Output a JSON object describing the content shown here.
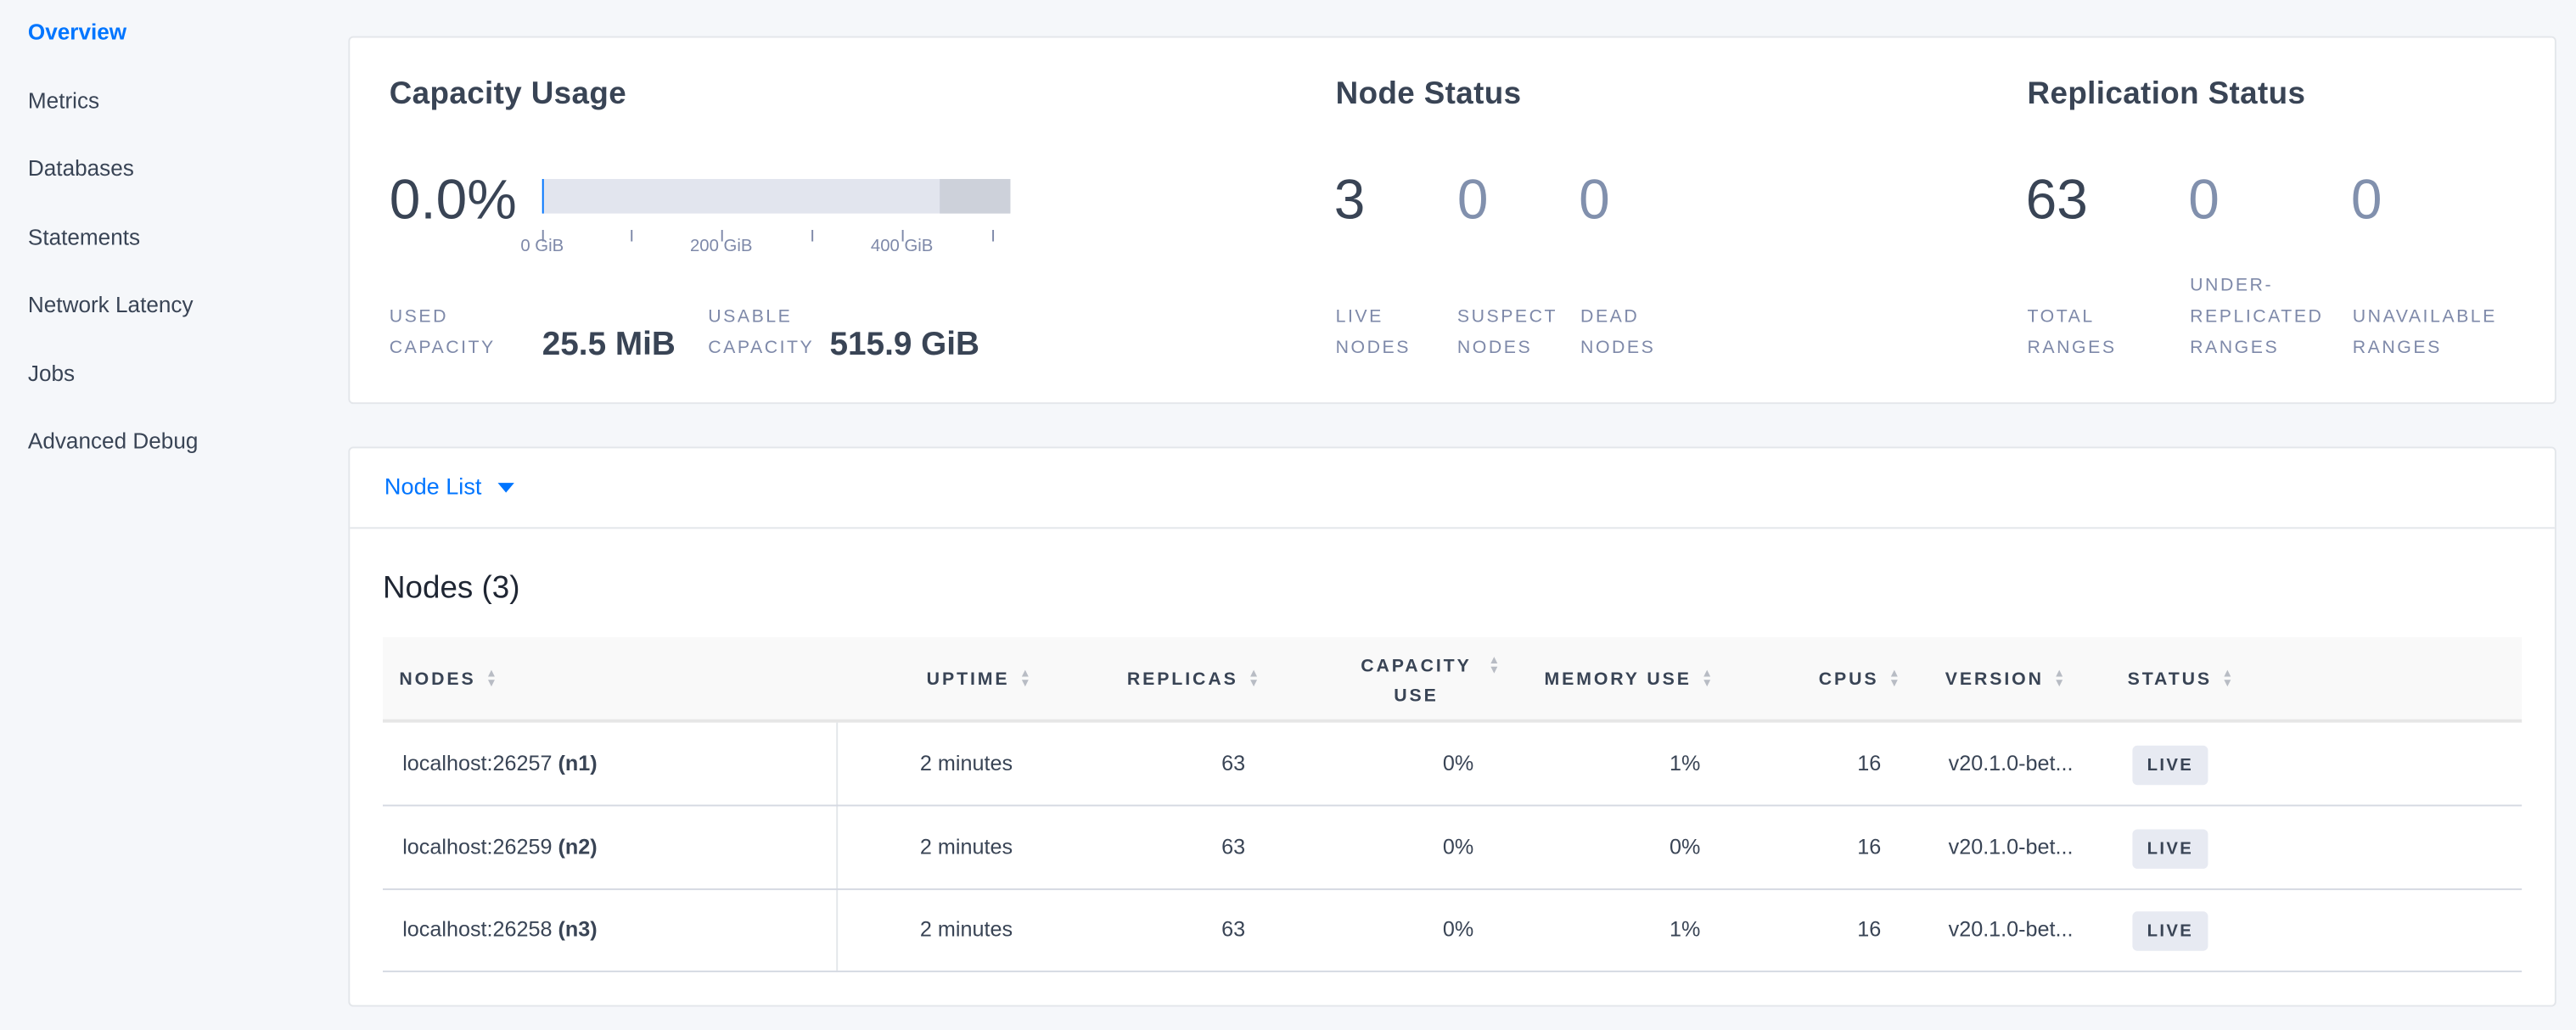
{
  "sidebar": {
    "items": [
      {
        "label": "Overview",
        "active": true
      },
      {
        "label": "Metrics"
      },
      {
        "label": "Databases"
      },
      {
        "label": "Statements"
      },
      {
        "label": "Network Latency"
      },
      {
        "label": "Jobs"
      },
      {
        "label": "Advanced Debug"
      }
    ]
  },
  "capacity": {
    "title": "Capacity Usage",
    "percent": "0.0%",
    "used_fraction": 0.0,
    "ticks": [
      "0 GiB",
      "200 GiB",
      "400 GiB"
    ],
    "used_label_1": "USED",
    "used_label_2": "CAPACITY",
    "used_value": "25.5 MiB",
    "usable_label_1": "USABLE",
    "usable_label_2": "CAPACITY",
    "usable_value": "515.9 GiB"
  },
  "node_status": {
    "title": "Node Status",
    "live": "3",
    "suspect": "0",
    "dead": "0",
    "live_l1": "LIVE",
    "live_l2": "NODES",
    "suspect_l1": "SUSPECT",
    "suspect_l2": "NODES",
    "dead_l1": "DEAD",
    "dead_l2": "NODES"
  },
  "replication": {
    "title": "Replication Status",
    "total": "63",
    "under": "0",
    "unavailable": "0",
    "total_l1": "TOTAL",
    "total_l2": "RANGES",
    "under_l0": "UNDER-",
    "under_l1": "REPLICATED",
    "under_l2": "RANGES",
    "unavail_l1": "UNAVAILABLE",
    "unavail_l2": "RANGES"
  },
  "node_list": {
    "dropdown_label": "Node List",
    "title": "Nodes (3)",
    "headers": {
      "nodes": "NODES",
      "uptime": "UPTIME",
      "replicas": "REPLICAS",
      "capacity_1": "CAPACITY",
      "capacity_2": "USE",
      "memory": "MEMORY USE",
      "cpus": "CPUS",
      "version": "VERSION",
      "status": "STATUS"
    },
    "rows": [
      {
        "address": "localhost:26257",
        "id": "(n1)",
        "uptime": "2 minutes",
        "replicas": "63",
        "capacity": "0%",
        "memory": "1%",
        "cpus": "16",
        "version": "v20.1.0-bet...",
        "status": "LIVE"
      },
      {
        "address": "localhost:26259",
        "id": "(n2)",
        "uptime": "2 minutes",
        "replicas": "63",
        "capacity": "0%",
        "memory": "0%",
        "cpus": "16",
        "version": "v20.1.0-bet...",
        "status": "LIVE"
      },
      {
        "address": "localhost:26258",
        "id": "(n3)",
        "uptime": "2 minutes",
        "replicas": "63",
        "capacity": "0%",
        "memory": "1%",
        "cpus": "16",
        "version": "v20.1.0-bet...",
        "status": "LIVE"
      }
    ]
  },
  "colors": {
    "accent": "#0075ff",
    "text": "#394455",
    "muted": "#7e89a9"
  }
}
